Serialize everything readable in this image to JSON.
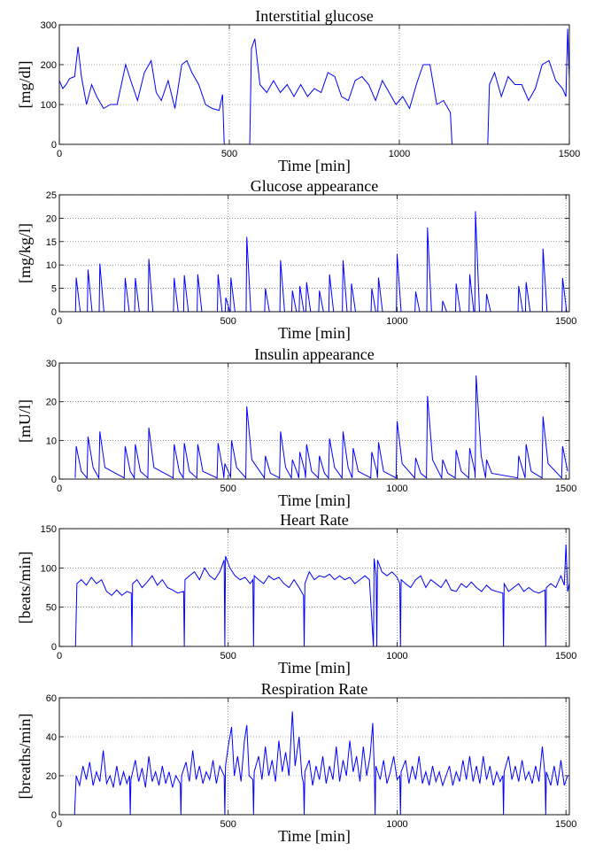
{
  "chart_data": [
    {
      "type": "line",
      "title": "Interstitial glucose",
      "xlabel": "Time [min]",
      "ylabel": "[mg/dl]",
      "color": "#0000ff",
      "grid": true,
      "xlim": [
        0,
        1500
      ],
      "xticks": [
        0,
        500,
        1000,
        1500
      ],
      "ylim": [
        0,
        300
      ],
      "yticks": [
        0,
        100,
        200,
        300
      ],
      "x": [
        0,
        10,
        20,
        30,
        45,
        55,
        65,
        80,
        95,
        110,
        130,
        150,
        170,
        195,
        210,
        230,
        250,
        270,
        285,
        300,
        320,
        340,
        360,
        375,
        390,
        410,
        430,
        450,
        470,
        480,
        485,
        560,
        565,
        575,
        590,
        610,
        630,
        650,
        670,
        690,
        710,
        730,
        750,
        770,
        790,
        810,
        830,
        850,
        870,
        890,
        910,
        930,
        950,
        970,
        990,
        1010,
        1030,
        1050,
        1070,
        1090,
        1110,
        1130,
        1150,
        1155,
        1260,
        1265,
        1280,
        1300,
        1320,
        1340,
        1360,
        1380,
        1400,
        1420,
        1440,
        1460,
        1480,
        1490,
        1495,
        1500
      ],
      "values": [
        160,
        140,
        150,
        165,
        170,
        245,
        170,
        100,
        150,
        120,
        90,
        100,
        100,
        200,
        160,
        110,
        180,
        210,
        130,
        110,
        160,
        90,
        200,
        210,
        180,
        150,
        100,
        90,
        85,
        125,
        0,
        0,
        240,
        265,
        150,
        130,
        160,
        130,
        150,
        120,
        150,
        120,
        140,
        130,
        180,
        170,
        120,
        110,
        160,
        170,
        150,
        110,
        160,
        130,
        100,
        120,
        90,
        150,
        200,
        200,
        100,
        110,
        80,
        0,
        0,
        150,
        180,
        120,
        170,
        150,
        150,
        110,
        140,
        200,
        210,
        160,
        140,
        120,
        290,
        165
      ]
    },
    {
      "type": "line",
      "title": "Glucose appearance",
      "xlabel": "Time [min]",
      "ylabel": "[mg/kg/l]",
      "color": "#0000ff",
      "grid": true,
      "xlim": [
        0,
        1510
      ],
      "xticks": [
        0,
        500,
        1000,
        1500
      ],
      "ylim": [
        0,
        25
      ],
      "yticks": [
        0,
        5,
        10,
        15,
        20,
        25
      ],
      "x": [
        48,
        50,
        62,
        83,
        85,
        97,
        118,
        120,
        132,
        193,
        195,
        207,
        223,
        225,
        237,
        263,
        265,
        277,
        338,
        340,
        352,
        368,
        370,
        382,
        408,
        410,
        422,
        468,
        470,
        482,
        491,
        493,
        505,
        506,
        508,
        520,
        553,
        555,
        567,
        608,
        610,
        622,
        653,
        655,
        667,
        688,
        690,
        702,
        710,
        712,
        724,
        730,
        732,
        744,
        768,
        770,
        782,
        798,
        800,
        812,
        838,
        840,
        852,
        863,
        865,
        877,
        923,
        925,
        937,
        943,
        945,
        957,
        998,
        1000,
        1012,
        1053,
        1055,
        1067,
        1088,
        1090,
        1102,
        1133,
        1135,
        1147,
        1173,
        1175,
        1187,
        1213,
        1215,
        1227,
        1230,
        1232,
        1244,
        1263,
        1265,
        1277,
        1358,
        1360,
        1372,
        1380,
        1382,
        1394,
        1430,
        1432,
        1444,
        1488,
        1490,
        1502
      ],
      "values": [
        0,
        7.3,
        0,
        0,
        9,
        0,
        0,
        10.3,
        0,
        0,
        7.2,
        0,
        0,
        7.2,
        0,
        0,
        11.3,
        0,
        0,
        7.2,
        0,
        0,
        7.8,
        0,
        0,
        8,
        0,
        0,
        8,
        0,
        0,
        3,
        0,
        0,
        7.3,
        0,
        0,
        16,
        0,
        0,
        5,
        0,
        0,
        11,
        0,
        0,
        4.5,
        0,
        0,
        5.5,
        0,
        0,
        6.3,
        0,
        0,
        4.5,
        0,
        0,
        8,
        0,
        0,
        11,
        0,
        0,
        6,
        0,
        0,
        5,
        0,
        0,
        7.3,
        0,
        0,
        12.3,
        0,
        0,
        4.3,
        0,
        0,
        18,
        0,
        0,
        2.3,
        0,
        0,
        6,
        0,
        0,
        8,
        0,
        0,
        21.5,
        0,
        0,
        3.8,
        0,
        0,
        5.5,
        0,
        0,
        6.3,
        0,
        0,
        13.5,
        0,
        0,
        7.2,
        0
      ]
    },
    {
      "type": "line",
      "title": "Insulin appearance",
      "xlabel": "Time [min]",
      "ylabel": "[mU/l]",
      "color": "#0000ff",
      "grid": true,
      "xlim": [
        0,
        1510
      ],
      "xticks": [
        0,
        500,
        1000,
        1500
      ],
      "ylim": [
        0,
        30
      ],
      "yticks": [
        0,
        10,
        20,
        30
      ],
      "x": [
        47,
        50,
        65,
        82,
        85,
        100,
        117,
        120,
        135,
        192,
        195,
        210,
        222,
        225,
        240,
        262,
        265,
        280,
        337,
        340,
        355,
        367,
        370,
        385,
        407,
        410,
        425,
        467,
        470,
        485,
        487,
        490,
        505,
        507,
        510,
        525,
        552,
        555,
        570,
        607,
        610,
        625,
        652,
        655,
        670,
        687,
        690,
        705,
        709,
        712,
        727,
        729,
        732,
        747,
        767,
        770,
        785,
        797,
        800,
        815,
        837,
        840,
        855,
        867,
        870,
        885,
        922,
        925,
        940,
        942,
        945,
        960,
        997,
        1000,
        1015,
        1052,
        1055,
        1070,
        1087,
        1090,
        1105,
        1132,
        1135,
        1150,
        1172,
        1175,
        1190,
        1212,
        1215,
        1230,
        1231,
        1234,
        1249,
        1262,
        1265,
        1280,
        1357,
        1360,
        1375,
        1379,
        1382,
        1397,
        1429,
        1432,
        1447,
        1487,
        1490,
        1505
      ],
      "values": [
        0.3,
        8.5,
        2,
        0.3,
        11,
        3,
        0.3,
        12.3,
        3,
        0.3,
        8.5,
        2,
        0.3,
        9,
        2,
        0.3,
        13.3,
        3,
        0.3,
        9,
        2,
        0.3,
        9.3,
        2,
        0.3,
        9,
        2,
        0.3,
        9.3,
        2,
        0.3,
        4,
        1,
        0.3,
        10,
        3,
        0.3,
        18.8,
        5,
        0.3,
        6,
        1.5,
        0.3,
        12.3,
        3,
        0.3,
        5,
        1.5,
        0.3,
        7,
        2,
        0.3,
        9,
        2,
        0.3,
        6,
        1.5,
        0.3,
        10.5,
        3,
        0.3,
        12.3,
        3,
        0.3,
        8,
        2,
        0.3,
        7,
        2,
        0.3,
        9.5,
        2,
        0.3,
        15,
        4,
        0.3,
        5.5,
        1.5,
        0.3,
        21.5,
        5,
        0.3,
        5,
        1.5,
        0.3,
        7.5,
        2,
        0.3,
        8,
        2,
        0.3,
        26.8,
        6,
        0.3,
        5,
        1.5,
        0.3,
        6,
        1.5,
        0.3,
        9,
        2,
        0.3,
        16.2,
        4,
        0.3,
        8.5,
        2
      ]
    },
    {
      "type": "line",
      "title": "Heart Rate",
      "xlabel": "Time [min]",
      "ylabel": "[beats/min]",
      "color": "#0000ff",
      "grid": true,
      "xlim": [
        0,
        1510
      ],
      "xticks": [
        0,
        500,
        1000,
        1500
      ],
      "ylim": [
        0,
        150
      ],
      "yticks": [
        0,
        50,
        100,
        150
      ],
      "x": [
        48,
        52,
        65,
        80,
        95,
        110,
        125,
        140,
        155,
        170,
        185,
        200,
        213,
        215,
        217,
        230,
        245,
        260,
        275,
        290,
        305,
        320,
        335,
        350,
        368,
        370,
        372,
        385,
        400,
        415,
        430,
        445,
        460,
        475,
        488,
        490,
        492,
        505,
        520,
        535,
        550,
        565,
        573,
        575,
        577,
        590,
        605,
        620,
        635,
        650,
        665,
        680,
        695,
        710,
        723,
        725,
        727,
        740,
        755,
        770,
        785,
        800,
        815,
        830,
        845,
        860,
        875,
        890,
        905,
        918,
        930,
        932,
        938,
        940,
        942,
        955,
        970,
        985,
        1000,
        1008,
        1010,
        1012,
        1025,
        1040,
        1055,
        1070,
        1085,
        1100,
        1115,
        1130,
        1145,
        1160,
        1175,
        1190,
        1205,
        1220,
        1235,
        1250,
        1265,
        1280,
        1295,
        1313,
        1315,
        1317,
        1330,
        1345,
        1360,
        1375,
        1390,
        1405,
        1420,
        1438,
        1440,
        1442,
        1455,
        1470,
        1485,
        1495,
        1500,
        1505,
        1510
      ],
      "values": [
        0,
        80,
        85,
        78,
        88,
        80,
        85,
        70,
        65,
        72,
        65,
        70,
        68,
        0,
        80,
        85,
        75,
        82,
        90,
        78,
        85,
        75,
        72,
        68,
        70,
        0,
        85,
        90,
        95,
        85,
        100,
        90,
        85,
        95,
        110,
        0,
        115,
        100,
        90,
        85,
        88,
        80,
        85,
        0,
        90,
        85,
        80,
        90,
        85,
        88,
        80,
        75,
        85,
        75,
        65,
        0,
        80,
        95,
        85,
        90,
        88,
        92,
        85,
        90,
        85,
        88,
        80,
        85,
        90,
        85,
        0,
        112,
        90,
        0,
        110,
        95,
        90,
        95,
        88,
        80,
        0,
        85,
        80,
        75,
        85,
        90,
        75,
        85,
        80,
        75,
        85,
        72,
        70,
        80,
        75,
        82,
        75,
        70,
        78,
        72,
        70,
        68,
        0,
        80,
        70,
        75,
        80,
        70,
        75,
        70,
        68,
        72,
        0,
        75,
        80,
        75,
        90,
        78,
        130,
        70,
        80
      ]
    },
    {
      "type": "line",
      "title": "Respiration Rate",
      "xlabel": "Time [min]",
      "ylabel": "[breaths/min]",
      "color": "#0000ff",
      "grid": true,
      "xlim": [
        0,
        1510
      ],
      "xticks": [
        0,
        500,
        1000,
        1500
      ],
      "ylim": [
        0,
        60
      ],
      "yticks": [
        0,
        20,
        40,
        60
      ],
      "x": [
        45,
        50,
        60,
        70,
        80,
        90,
        100,
        110,
        120,
        130,
        140,
        150,
        160,
        170,
        180,
        190,
        200,
        208,
        210,
        212,
        225,
        235,
        245,
        255,
        265,
        275,
        285,
        295,
        305,
        315,
        325,
        335,
        345,
        358,
        360,
        362,
        375,
        385,
        395,
        405,
        415,
        425,
        435,
        445,
        455,
        465,
        475,
        488,
        490,
        492,
        500,
        510,
        518,
        528,
        538,
        548,
        555,
        562,
        573,
        575,
        577,
        590,
        600,
        610,
        620,
        630,
        640,
        650,
        660,
        670,
        680,
        690,
        698,
        710,
        718,
        723,
        725,
        727,
        740,
        750,
        760,
        770,
        780,
        790,
        800,
        810,
        820,
        830,
        840,
        850,
        860,
        870,
        880,
        890,
        900,
        910,
        920,
        928,
        933,
        935,
        937,
        950,
        960,
        970,
        980,
        990,
        1000,
        1008,
        1010,
        1012,
        1025,
        1035,
        1045,
        1055,
        1065,
        1075,
        1085,
        1095,
        1105,
        1115,
        1125,
        1135,
        1145,
        1155,
        1165,
        1175,
        1185,
        1195,
        1205,
        1215,
        1225,
        1235,
        1245,
        1255,
        1265,
        1275,
        1285,
        1295,
        1305,
        1313,
        1315,
        1317,
        1330,
        1340,
        1350,
        1360,
        1370,
        1380,
        1390,
        1400,
        1410,
        1420,
        1430,
        1438,
        1440,
        1442,
        1455,
        1465,
        1475,
        1485,
        1495,
        1505
      ],
      "values": [
        0,
        20,
        15,
        25,
        18,
        27,
        15,
        22,
        17,
        33,
        16,
        20,
        14,
        25,
        15,
        22,
        16,
        20,
        0,
        18,
        28,
        17,
        24,
        14,
        30,
        17,
        22,
        15,
        25,
        16,
        22,
        14,
        20,
        16,
        0,
        20,
        27,
        17,
        33,
        18,
        25,
        16,
        22,
        18,
        28,
        16,
        25,
        20,
        0,
        25,
        35,
        45,
        20,
        30,
        17,
        38,
        46,
        20,
        18,
        0,
        22,
        30,
        18,
        35,
        20,
        28,
        17,
        38,
        22,
        32,
        20,
        53,
        25,
        40,
        20,
        16,
        0,
        22,
        28,
        15,
        25,
        18,
        30,
        16,
        25,
        18,
        35,
        17,
        28,
        20,
        38,
        22,
        30,
        17,
        35,
        20,
        30,
        47,
        20,
        0,
        25,
        18,
        28,
        16,
        22,
        30,
        18,
        20,
        0,
        22,
        28,
        16,
        25,
        18,
        30,
        16,
        22,
        15,
        25,
        17,
        22,
        15,
        20,
        25,
        15,
        22,
        17,
        28,
        18,
        30,
        17,
        25,
        16,
        30,
        18,
        25,
        15,
        22,
        17,
        20,
        0,
        22,
        30,
        18,
        25,
        17,
        28,
        18,
        22,
        16,
        25,
        17,
        35,
        20,
        0,
        22,
        15,
        25,
        15,
        28,
        15,
        20
      ]
    }
  ]
}
